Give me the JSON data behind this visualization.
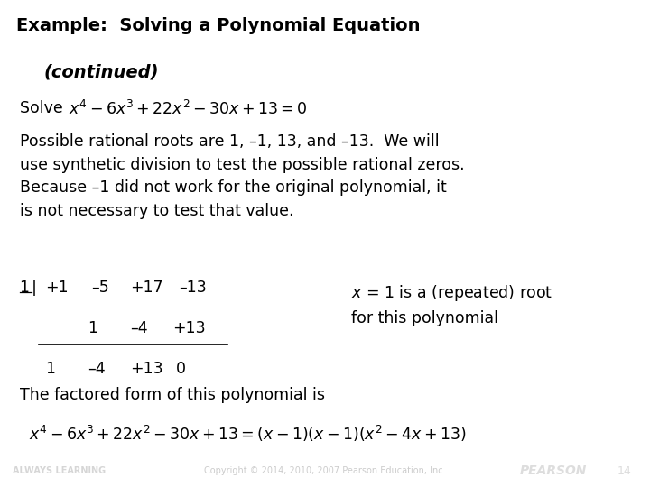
{
  "title_line1": "Example:  Solving a Polynomial Equation",
  "title_line2": "(continued)",
  "header_bg": "#b8dce8",
  "body_bg": "#ffffff",
  "footer_bg": "#c0392b",
  "footer_left": "ALWAYS LEARNING",
  "footer_center": "Copyright © 2014, 2010, 2007 Pearson Education, Inc.",
  "footer_right": "PEARSON",
  "footer_page": "14",
  "body_text_color": "#000000",
  "title_color": "#000000",
  "font_size_title": 14,
  "font_size_body": 12.5,
  "font_size_footer": 7
}
